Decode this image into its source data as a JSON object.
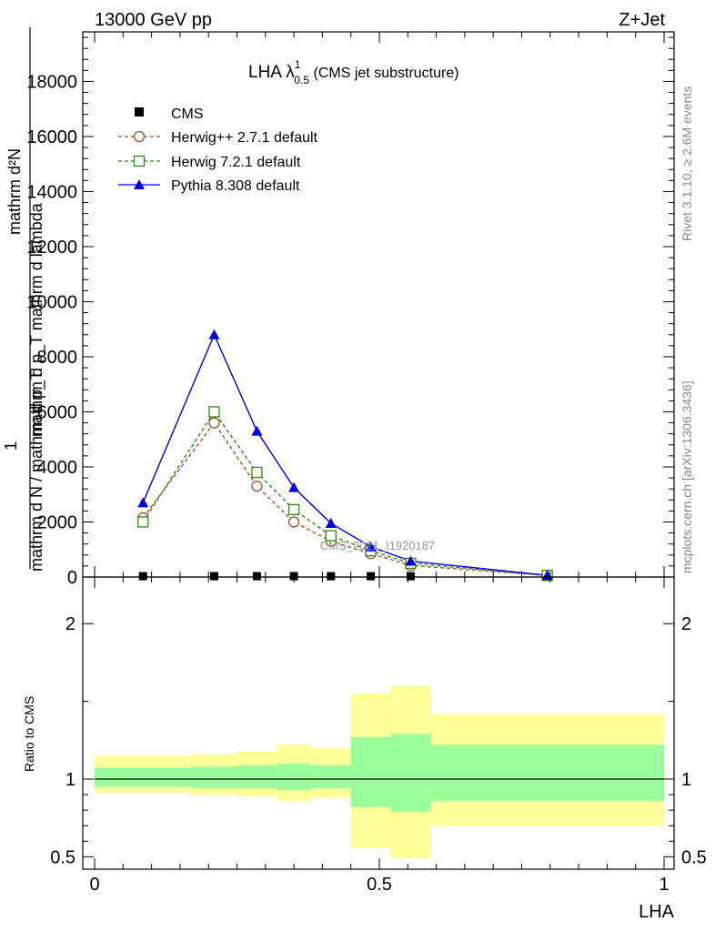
{
  "header": {
    "energy": "13000 GeV pp",
    "process": "Z+Jet"
  },
  "side_labels": {
    "rivet": "Rivet 3.1.10, ≥ 2.6M events",
    "mcplots": "mcplots.cern.ch [arXiv:1306.3436]"
  },
  "plot_title": {
    "main": "LHA λ",
    "sup": "1",
    "sub": "0.5",
    "suffix": " (CMS jet substructure)"
  },
  "watermark": "CMS_2021_I1920187",
  "y_label_main": {
    "numerator": "1",
    "denominator": "mathrm d N / mathrm d p_T",
    "frac_num": "mathrm d²N",
    "frac_den": "mathrm d p_T mathrm d lambda"
  },
  "ratio_ylabel": "Ratio to CMS",
  "x_label": "LHA",
  "colors": {
    "cms": "#000000",
    "herwigpp": "#a0522d",
    "herwig7": "#2e8b0a",
    "pythia": "#0000dd",
    "band_outer": "#ffff99",
    "band_inner": "#99ff99"
  },
  "chart_data": [
    {
      "type": "line",
      "panel": "main",
      "xlim": [
        0,
        1
      ],
      "ylim": [
        0,
        19800
      ],
      "y_ticks": [
        0,
        2000,
        4000,
        6000,
        8000,
        10000,
        12000,
        14000,
        16000,
        18000
      ],
      "y_tick_labels": [
        "0",
        "2000",
        "4000",
        "6000",
        "8000",
        "10000",
        "12000",
        "14000",
        "16000",
        "18000"
      ],
      "legend_position": "top-left",
      "series": [
        {
          "name": "CMS",
          "marker": "square-filled",
          "style": "none",
          "x": [
            0.085,
            0.21,
            0.285,
            0.35,
            0.415,
            0.485,
            0.555,
            0.795
          ],
          "y": [
            30,
            30,
            30,
            30,
            30,
            30,
            30,
            10
          ]
        },
        {
          "name": "Herwig++ 2.7.1 default",
          "marker": "circle-open",
          "style": "dashed",
          "x": [
            0.085,
            0.21,
            0.285,
            0.35,
            0.415,
            0.485,
            0.555,
            0.795
          ],
          "y": [
            2150,
            5600,
            3300,
            2000,
            1300,
            850,
            420,
            60
          ]
        },
        {
          "name": "Herwig 7.2.1 default",
          "marker": "square-open",
          "style": "dashed",
          "x": [
            0.085,
            0.21,
            0.285,
            0.35,
            0.415,
            0.485,
            0.555,
            0.795
          ],
          "y": [
            2000,
            6000,
            3800,
            2450,
            1500,
            950,
            500,
            60
          ]
        },
        {
          "name": "Pythia 8.308 default",
          "marker": "triangle-filled",
          "style": "solid",
          "x": [
            0.085,
            0.21,
            0.285,
            0.35,
            0.415,
            0.485,
            0.555,
            0.795
          ],
          "y": [
            2700,
            8800,
            5300,
            3250,
            1950,
            1100,
            580,
            60
          ]
        }
      ]
    },
    {
      "type": "area",
      "panel": "ratio",
      "xlim": [
        0,
        1
      ],
      "ylim": [
        0.42,
        2.3
      ],
      "y_ticks": [
        0.5,
        1,
        2
      ],
      "y_tick_labels": [
        "0.5",
        "1",
        "2"
      ],
      "x_ticks": [
        0,
        0.5,
        1
      ],
      "x_tick_labels": [
        "0",
        "0.5",
        "1"
      ],
      "reference_line": 1,
      "bins": [
        {
          "x0": 0.0,
          "x1": 0.17,
          "outer": [
            0.91,
            1.15
          ],
          "inner": [
            0.95,
            1.07
          ]
        },
        {
          "x0": 0.17,
          "x1": 0.25,
          "outer": [
            0.9,
            1.16
          ],
          "inner": [
            0.94,
            1.08
          ]
        },
        {
          "x0": 0.25,
          "x1": 0.32,
          "outer": [
            0.89,
            1.18
          ],
          "inner": [
            0.94,
            1.09
          ]
        },
        {
          "x0": 0.32,
          "x1": 0.38,
          "outer": [
            0.86,
            1.22
          ],
          "inner": [
            0.93,
            1.1
          ]
        },
        {
          "x0": 0.38,
          "x1": 0.45,
          "outer": [
            0.88,
            1.2
          ],
          "inner": [
            0.94,
            1.09
          ]
        },
        {
          "x0": 0.45,
          "x1": 0.52,
          "outer": [
            0.56,
            1.55
          ],
          "inner": [
            0.82,
            1.27
          ]
        },
        {
          "x0": 0.52,
          "x1": 0.59,
          "outer": [
            0.49,
            1.6
          ],
          "inner": [
            0.79,
            1.29
          ]
        },
        {
          "x0": 0.59,
          "x1": 1.0,
          "outer": [
            0.7,
            1.42
          ],
          "inner": [
            0.86,
            1.22
          ]
        }
      ]
    }
  ]
}
